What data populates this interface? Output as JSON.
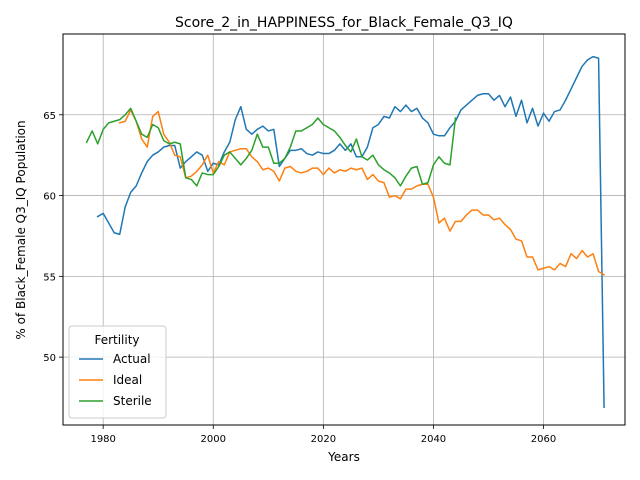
{
  "chart_data": {
    "type": "line",
    "title": "Score_2_in_HAPPINESS_for_Black_Female_Q3_IQ",
    "xlabel": "Years",
    "ylabel": "% of Black_Female Q3_IQ Population",
    "xlim": [
      1972.7,
      2074.8
    ],
    "ylim": [
      45.8,
      70.0
    ],
    "x_ticks": [
      1980,
      2000,
      2020,
      2040,
      2060
    ],
    "y_ticks": [
      50,
      55,
      60,
      65
    ],
    "grid": true,
    "legend": {
      "title": "Fertility",
      "placement": "lower-left"
    },
    "series": [
      {
        "name": "Actual",
        "color": "#1f77b4",
        "points": [
          [
            1979,
            58.7
          ],
          [
            1980,
            58.9
          ],
          [
            1981,
            58.3
          ],
          [
            1982,
            57.7
          ],
          [
            1983,
            57.6
          ],
          [
            1984,
            59.3
          ],
          [
            1985,
            60.2
          ],
          [
            1986,
            60.6
          ],
          [
            1987,
            61.4
          ],
          [
            1988,
            62.1
          ],
          [
            1989,
            62.5
          ],
          [
            1990,
            62.7
          ],
          [
            1991,
            63.0
          ],
          [
            1992,
            63.1
          ],
          [
            1993,
            63.1
          ],
          [
            1994,
            61.7
          ],
          [
            1995,
            62.1
          ],
          [
            1996,
            62.4
          ],
          [
            1997,
            62.7
          ],
          [
            1998,
            62.5
          ],
          [
            1999,
            61.5
          ],
          [
            2000,
            62.0
          ],
          [
            2001,
            61.9
          ],
          [
            2002,
            62.7
          ],
          [
            2003,
            63.3
          ],
          [
            2004,
            64.7
          ],
          [
            2005,
            65.5
          ],
          [
            2006,
            64.1
          ],
          [
            2007,
            63.8
          ],
          [
            2008,
            64.1
          ],
          [
            2009,
            64.3
          ],
          [
            2010,
            64.0
          ],
          [
            2011,
            64.1
          ],
          [
            2012,
            61.8
          ],
          [
            2013,
            62.3
          ],
          [
            2014,
            62.8
          ],
          [
            2015,
            62.8
          ],
          [
            2016,
            62.9
          ],
          [
            2017,
            62.6
          ],
          [
            2018,
            62.5
          ],
          [
            2019,
            62.7
          ],
          [
            2020,
            62.6
          ],
          [
            2021,
            62.6
          ],
          [
            2022,
            62.8
          ],
          [
            2023,
            63.2
          ],
          [
            2024,
            62.8
          ],
          [
            2025,
            63.2
          ],
          [
            2026,
            62.4
          ],
          [
            2027,
            62.4
          ],
          [
            2028,
            63.0
          ],
          [
            2029,
            64.2
          ],
          [
            2030,
            64.4
          ],
          [
            2031,
            64.9
          ],
          [
            2032,
            64.8
          ],
          [
            2033,
            65.5
          ],
          [
            2034,
            65.2
          ],
          [
            2035,
            65.6
          ],
          [
            2036,
            65.2
          ],
          [
            2037,
            65.4
          ],
          [
            2038,
            64.8
          ],
          [
            2039,
            64.5
          ],
          [
            2040,
            63.8
          ],
          [
            2041,
            63.7
          ],
          [
            2042,
            63.7
          ],
          [
            2043,
            64.2
          ],
          [
            2044,
            64.6
          ],
          [
            2045,
            65.3
          ],
          [
            2046,
            65.6
          ],
          [
            2047,
            65.9
          ],
          [
            2048,
            66.2
          ],
          [
            2049,
            66.3
          ],
          [
            2050,
            66.3
          ],
          [
            2051,
            65.9
          ],
          [
            2052,
            66.2
          ],
          [
            2053,
            65.5
          ],
          [
            2054,
            66.1
          ],
          [
            2055,
            64.9
          ],
          [
            2056,
            65.9
          ],
          [
            2057,
            64.5
          ],
          [
            2058,
            65.4
          ],
          [
            2059,
            64.3
          ],
          [
            2060,
            65.1
          ],
          [
            2061,
            64.6
          ],
          [
            2062,
            65.2
          ],
          [
            2063,
            65.3
          ],
          [
            2064,
            65.9
          ],
          [
            2065,
            66.6
          ],
          [
            2066,
            67.3
          ],
          [
            2067,
            68.0
          ],
          [
            2068,
            68.4
          ],
          [
            2069,
            68.6
          ],
          [
            2070,
            68.5
          ],
          [
            2071,
            46.9
          ]
        ]
      },
      {
        "name": "Ideal",
        "color": "#ff7f0e",
        "points": [
          [
            1983,
            64.5
          ],
          [
            1984,
            64.6
          ],
          [
            1985,
            65.3
          ],
          [
            1986,
            64.6
          ],
          [
            1987,
            63.5
          ],
          [
            1988,
            63.0
          ],
          [
            1989,
            64.9
          ],
          [
            1990,
            65.2
          ],
          [
            1991,
            63.8
          ],
          [
            1992,
            63.3
          ],
          [
            1993,
            62.5
          ],
          [
            1994,
            62.4
          ],
          [
            1995,
            61.1
          ],
          [
            1996,
            61.2
          ],
          [
            1997,
            61.5
          ],
          [
            1998,
            61.9
          ],
          [
            1999,
            62.5
          ],
          [
            2000,
            61.4
          ],
          [
            2001,
            62.1
          ],
          [
            2002,
            61.9
          ],
          [
            2003,
            62.7
          ],
          [
            2004,
            62.8
          ],
          [
            2005,
            62.9
          ],
          [
            2006,
            62.9
          ],
          [
            2007,
            62.4
          ],
          [
            2008,
            62.1
          ],
          [
            2009,
            61.6
          ],
          [
            2010,
            61.7
          ],
          [
            2011,
            61.5
          ],
          [
            2012,
            60.9
          ],
          [
            2013,
            61.7
          ],
          [
            2014,
            61.8
          ],
          [
            2015,
            61.5
          ],
          [
            2016,
            61.4
          ],
          [
            2017,
            61.5
          ],
          [
            2018,
            61.7
          ],
          [
            2019,
            61.7
          ],
          [
            2020,
            61.3
          ],
          [
            2021,
            61.7
          ],
          [
            2022,
            61.4
          ],
          [
            2023,
            61.6
          ],
          [
            2024,
            61.5
          ],
          [
            2025,
            61.7
          ],
          [
            2026,
            61.6
          ],
          [
            2027,
            61.7
          ],
          [
            2028,
            61.0
          ],
          [
            2029,
            61.3
          ],
          [
            2030,
            60.9
          ],
          [
            2031,
            60.8
          ],
          [
            2032,
            59.9
          ],
          [
            2033,
            60.0
          ],
          [
            2034,
            59.8
          ],
          [
            2035,
            60.4
          ],
          [
            2036,
            60.4
          ],
          [
            2037,
            60.6
          ],
          [
            2038,
            60.7
          ],
          [
            2039,
            60.7
          ],
          [
            2040,
            59.9
          ],
          [
            2041,
            58.3
          ],
          [
            2042,
            58.6
          ],
          [
            2043,
            57.8
          ],
          [
            2044,
            58.4
          ],
          [
            2045,
            58.4
          ],
          [
            2046,
            58.8
          ],
          [
            2047,
            59.1
          ],
          [
            2048,
            59.1
          ],
          [
            2049,
            58.8
          ],
          [
            2050,
            58.8
          ],
          [
            2051,
            58.5
          ],
          [
            2052,
            58.6
          ],
          [
            2053,
            58.2
          ],
          [
            2054,
            57.9
          ],
          [
            2055,
            57.3
          ],
          [
            2056,
            57.2
          ],
          [
            2057,
            56.2
          ],
          [
            2058,
            56.2
          ],
          [
            2059,
            55.4
          ],
          [
            2060,
            55.5
          ],
          [
            2061,
            55.6
          ],
          [
            2062,
            55.4
          ],
          [
            2063,
            55.8
          ],
          [
            2064,
            55.6
          ],
          [
            2065,
            56.4
          ],
          [
            2066,
            56.1
          ],
          [
            2067,
            56.6
          ],
          [
            2068,
            56.2
          ],
          [
            2069,
            56.4
          ],
          [
            2070,
            55.3
          ],
          [
            2071,
            55.1
          ]
        ]
      },
      {
        "name": "Sterile",
        "color": "#2ca02c",
        "points": [
          [
            1977,
            63.3
          ],
          [
            1978,
            64.0
          ],
          [
            1979,
            63.2
          ],
          [
            1980,
            64.1
          ],
          [
            1981,
            64.5
          ],
          [
            1982,
            64.6
          ],
          [
            1983,
            64.7
          ],
          [
            1984,
            65.0
          ],
          [
            1985,
            65.4
          ],
          [
            1986,
            64.6
          ],
          [
            1987,
            63.8
          ],
          [
            1988,
            63.6
          ],
          [
            1989,
            64.4
          ],
          [
            1990,
            64.2
          ],
          [
            1991,
            63.4
          ],
          [
            1992,
            63.2
          ],
          [
            1993,
            63.3
          ],
          [
            1994,
            63.2
          ],
          [
            1995,
            61.1
          ],
          [
            1996,
            61.0
          ],
          [
            1997,
            60.6
          ],
          [
            1998,
            61.4
          ],
          [
            1999,
            61.3
          ],
          [
            2000,
            61.3
          ],
          [
            2001,
            61.8
          ],
          [
            2002,
            62.5
          ],
          [
            2003,
            62.7
          ],
          [
            2004,
            62.3
          ],
          [
            2005,
            61.9
          ],
          [
            2006,
            62.3
          ],
          [
            2007,
            62.8
          ],
          [
            2008,
            63.8
          ],
          [
            2009,
            63.0
          ],
          [
            2010,
            63.0
          ],
          [
            2011,
            62.0
          ],
          [
            2012,
            62.0
          ],
          [
            2013,
            62.3
          ],
          [
            2014,
            63.0
          ],
          [
            2015,
            64.0
          ],
          [
            2016,
            64.0
          ],
          [
            2017,
            64.2
          ],
          [
            2018,
            64.4
          ],
          [
            2019,
            64.8
          ],
          [
            2020,
            64.4
          ],
          [
            2021,
            64.2
          ],
          [
            2022,
            64.0
          ],
          [
            2023,
            63.6
          ],
          [
            2024,
            63.1
          ],
          [
            2025,
            62.7
          ],
          [
            2026,
            63.5
          ],
          [
            2027,
            62.4
          ],
          [
            2028,
            62.2
          ],
          [
            2029,
            62.5
          ],
          [
            2030,
            61.9
          ],
          [
            2031,
            61.6
          ],
          [
            2032,
            61.4
          ],
          [
            2033,
            61.1
          ],
          [
            2034,
            60.6
          ],
          [
            2035,
            61.2
          ],
          [
            2036,
            61.7
          ],
          [
            2037,
            61.8
          ],
          [
            2038,
            60.7
          ],
          [
            2039,
            60.8
          ],
          [
            2040,
            61.9
          ],
          [
            2041,
            62.4
          ],
          [
            2042,
            62.0
          ],
          [
            2043,
            61.9
          ],
          [
            2044,
            64.8
          ]
        ]
      }
    ]
  }
}
